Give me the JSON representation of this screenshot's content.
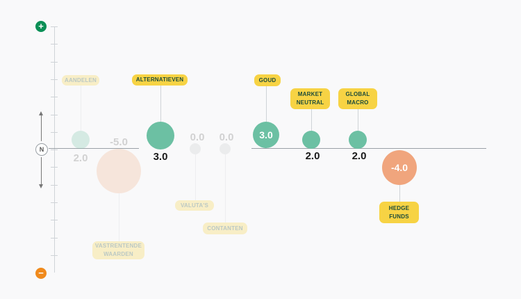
{
  "axis": {
    "plus_icon": "plus-icon",
    "minus_icon": "minus-icon",
    "neutral_label": "N",
    "colors": {
      "plus": "#0a8f56",
      "minus": "#f08a1c"
    }
  },
  "chart_data": {
    "type": "scatter",
    "title": "",
    "ylim": [
      -8,
      8
    ],
    "items": [
      {
        "label": "AANDELEN",
        "value": 2.0,
        "value_text": "2.0",
        "active": false,
        "color": "#79c6a9"
      },
      {
        "label": "VASTRENTENDE WAARDEN",
        "value": -5.0,
        "value_text": "-5.0",
        "active": false,
        "color": "#f1b28f"
      },
      {
        "label": "ALTERNATIEVEN",
        "value": 3.0,
        "value_text": "3.0",
        "active": true,
        "color": "#6cc0a3"
      },
      {
        "label": "VALUTA'S",
        "value": 0.0,
        "value_text": "0.0",
        "active": false,
        "color": "#c9cbcd"
      },
      {
        "label": "CONTANTEN",
        "value": 0.0,
        "value_text": "0.0",
        "active": false,
        "color": "#c9cbcd"
      },
      {
        "label": "GOUD",
        "value": 3.0,
        "value_text": "3.0",
        "active": true,
        "color": "#6cc0a3"
      },
      {
        "label": "MARKET NEUTRAL",
        "value": 2.0,
        "value_text": "2.0",
        "active": true,
        "color": "#6cc0a3"
      },
      {
        "label": "GLOBAL MACRO",
        "value": 2.0,
        "value_text": "2.0",
        "active": true,
        "color": "#6cc0a3"
      },
      {
        "label": "HEDGE FUNDS",
        "value": -4.0,
        "value_text": "-4.0",
        "active": true,
        "color": "#f0a57d"
      }
    ]
  }
}
